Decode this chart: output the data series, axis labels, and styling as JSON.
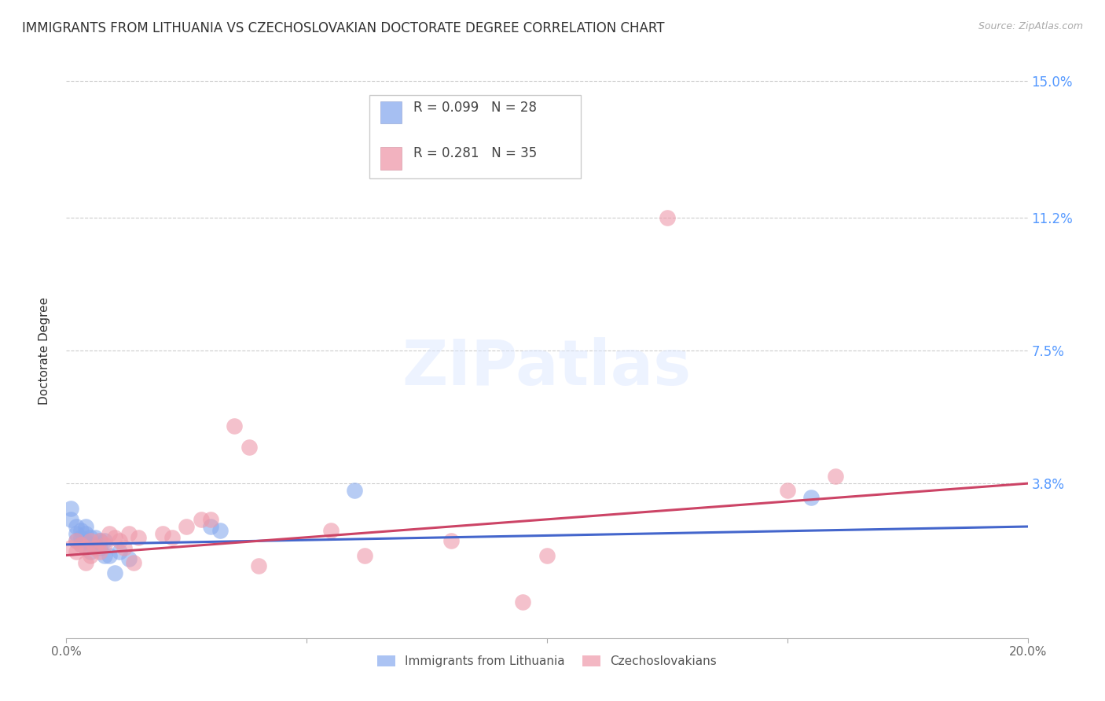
{
  "title": "IMMIGRANTS FROM LITHUANIA VS CZECHOSLOVAKIAN DOCTORATE DEGREE CORRELATION CHART",
  "source": "Source: ZipAtlas.com",
  "ylabel": "Doctorate Degree",
  "xlim": [
    0.0,
    0.2
  ],
  "ylim": [
    -0.005,
    0.155
  ],
  "ytick_labels_right": [
    "15.0%",
    "11.2%",
    "7.5%",
    "3.8%"
  ],
  "ytick_positions_right": [
    0.15,
    0.112,
    0.075,
    0.038
  ],
  "background_color": "#ffffff",
  "blue_color": "#88aaee",
  "pink_color": "#ee99aa",
  "blue_line_color": "#4466cc",
  "pink_line_color": "#cc4466",
  "blue_scatter_x": [
    0.001,
    0.001,
    0.002,
    0.002,
    0.002,
    0.003,
    0.003,
    0.003,
    0.004,
    0.004,
    0.004,
    0.005,
    0.005,
    0.005,
    0.006,
    0.006,
    0.007,
    0.007,
    0.008,
    0.008,
    0.009,
    0.01,
    0.011,
    0.013,
    0.03,
    0.032,
    0.06,
    0.155
  ],
  "blue_scatter_y": [
    0.031,
    0.028,
    0.026,
    0.024,
    0.022,
    0.025,
    0.023,
    0.021,
    0.026,
    0.024,
    0.022,
    0.023,
    0.021,
    0.019,
    0.023,
    0.021,
    0.022,
    0.02,
    0.022,
    0.018,
    0.018,
    0.013,
    0.019,
    0.017,
    0.026,
    0.025,
    0.036,
    0.034
  ],
  "pink_scatter_x": [
    0.001,
    0.002,
    0.002,
    0.003,
    0.004,
    0.004,
    0.005,
    0.005,
    0.006,
    0.007,
    0.007,
    0.008,
    0.009,
    0.01,
    0.011,
    0.012,
    0.013,
    0.014,
    0.015,
    0.02,
    0.022,
    0.025,
    0.028,
    0.03,
    0.035,
    0.038,
    0.04,
    0.055,
    0.062,
    0.08,
    0.095,
    0.1,
    0.125,
    0.15,
    0.16
  ],
  "pink_scatter_y": [
    0.02,
    0.022,
    0.019,
    0.021,
    0.016,
    0.02,
    0.018,
    0.022,
    0.02,
    0.019,
    0.022,
    0.021,
    0.024,
    0.023,
    0.022,
    0.02,
    0.024,
    0.016,
    0.023,
    0.024,
    0.023,
    0.026,
    0.028,
    0.028,
    0.054,
    0.048,
    0.015,
    0.025,
    0.018,
    0.022,
    0.005,
    0.018,
    0.112,
    0.036,
    0.04
  ],
  "blue_trend_x": [
    0.0,
    0.2
  ],
  "blue_trend_y": [
    0.021,
    0.026
  ],
  "pink_trend_x": [
    0.0,
    0.2
  ],
  "pink_trend_y": [
    0.018,
    0.038
  ],
  "legend_R1": "0.099",
  "legend_N1": "28",
  "legend_R2": "0.281",
  "legend_N2": "35",
  "title_fontsize": 12,
  "tick_fontsize": 11,
  "axis_label_fontsize": 11
}
